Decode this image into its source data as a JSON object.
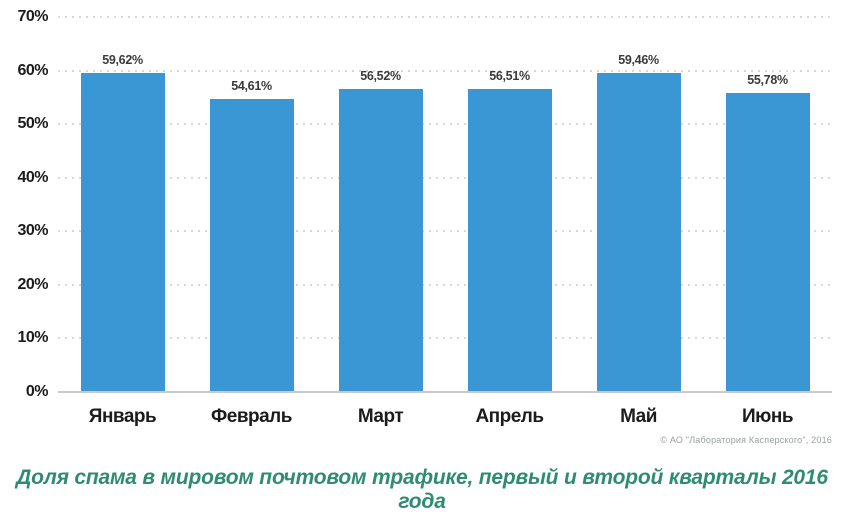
{
  "chart_data": {
    "type": "bar",
    "title": "Доля спама в мировом почтовом трафике, первый и второй кварталы 2016 года",
    "source": "© АО \"Лаборатория Касперского\", 2016",
    "categories": [
      "Январь",
      "Февраль",
      "Март",
      "Апрель",
      "Май",
      "Июнь"
    ],
    "values": [
      59.62,
      54.61,
      56.52,
      56.51,
      59.46,
      55.78
    ],
    "value_labels": [
      "59,62%",
      "54,61%",
      "56,52%",
      "56,51%",
      "59,46%",
      "55,78%"
    ],
    "xlabel": "",
    "ylabel": "",
    "ylim": [
      0,
      70
    ],
    "yticks": [
      {
        "value": 0,
        "label": "0%"
      },
      {
        "value": 10,
        "label": "10%"
      },
      {
        "value": 20,
        "label": "20%"
      },
      {
        "value": 30,
        "label": "30%"
      },
      {
        "value": 40,
        "label": "40%"
      },
      {
        "value": 50,
        "label": "50%"
      },
      {
        "value": 60,
        "label": "60%"
      },
      {
        "value": 70,
        "label": "70%"
      }
    ],
    "grid": "horizontal-dotted",
    "legend": "none",
    "colors": {
      "bar": "#3b97d3",
      "title": "#2f8b72",
      "axis_label": "#1c1c1c",
      "value_label": "#3a3a3a",
      "gridline": "#d9d9d9",
      "axis_line": "#c9c9c9",
      "source": "#9aa19c"
    }
  }
}
